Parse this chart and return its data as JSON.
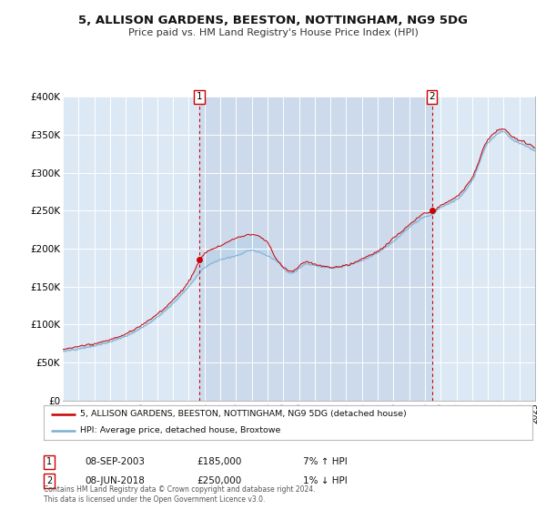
{
  "title": "5, ALLISON GARDENS, BEESTON, NOTTINGHAM, NG9 5DG",
  "subtitle": "Price paid vs. HM Land Registry's House Price Index (HPI)",
  "background_color": "#ffffff",
  "plot_bg_color": "#dce9f5",
  "grid_color": "#ffffff",
  "x_start_year": 1995,
  "x_end_year": 2025,
  "y_min": 0,
  "y_max": 400000,
  "y_ticks": [
    0,
    50000,
    100000,
    150000,
    200000,
    250000,
    300000,
    350000,
    400000
  ],
  "purchase1": {
    "year": 2003.69,
    "price": 185000,
    "label": "1",
    "date": "08-SEP-2003",
    "pct": "7% ↑ HPI"
  },
  "purchase2": {
    "year": 2018.44,
    "price": 250000,
    "label": "2",
    "date": "08-JUN-2018",
    "pct": "1% ↓ HPI"
  },
  "line_color_red": "#cc0000",
  "line_color_blue": "#7aafd4",
  "fill_color": "#b8d0e8",
  "dashed_line_color": "#cc0000",
  "marker_color": "#cc0000",
  "legend_label_red": "5, ALLISON GARDENS, BEESTON, NOTTINGHAM, NG9 5DG (detached house)",
  "legend_label_blue": "HPI: Average price, detached house, Broxtowe",
  "footnote": "Contains HM Land Registry data © Crown copyright and database right 2024.\nThis data is licensed under the Open Government Licence v3.0."
}
